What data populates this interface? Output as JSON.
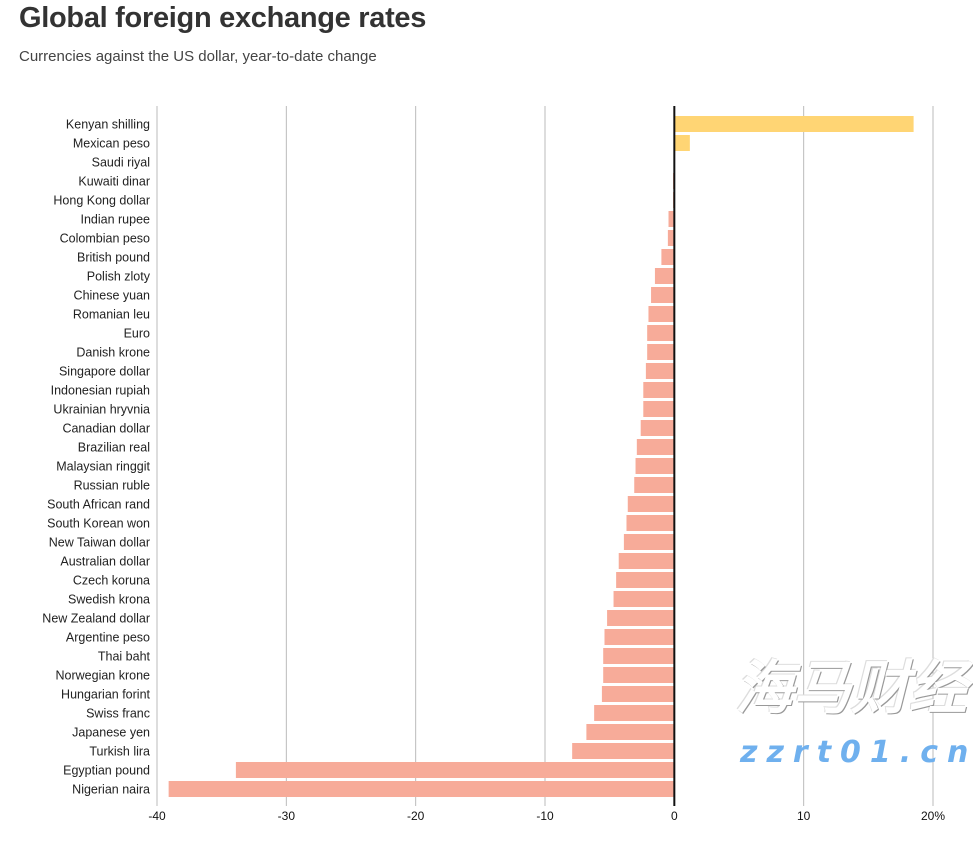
{
  "chart_data": {
    "type": "bar",
    "orientation": "horizontal",
    "title": "Global foreign exchange rates",
    "subtitle": "Currencies against the US dollar, year-to-date change",
    "categories": [
      "Kenyan shilling",
      "Mexican peso",
      "Saudi riyal",
      "Kuwaiti dinar",
      "Hong Kong dollar",
      "Indian rupee",
      "Colombian peso",
      "British pound",
      "Polish zloty",
      "Chinese yuan",
      "Romanian leu",
      "Euro",
      "Danish krone",
      "Singapore dollar",
      "Indonesian rupiah",
      "Ukrainian hryvnia",
      "Canadian dollar",
      "Brazilian real",
      "Malaysian ringgit",
      "Russian ruble",
      "South African rand",
      "South Korean won",
      "New Taiwan dollar",
      "Australian dollar",
      "Czech koruna",
      "Swedish krona",
      "New Zealand dollar",
      "Argentine peso",
      "Thai baht",
      "Norwegian krone",
      "Hungarian forint",
      "Swiss franc",
      "Japanese yen",
      "Turkish lira",
      "Egyptian pound",
      "Nigerian naira"
    ],
    "values": [
      18.5,
      1.2,
      0,
      -0.1,
      -0.1,
      -0.45,
      -0.5,
      -1.0,
      -1.5,
      -1.8,
      -2.0,
      -2.1,
      -2.1,
      -2.2,
      -2.4,
      -2.4,
      -2.6,
      -2.9,
      -3.0,
      -3.1,
      -3.6,
      -3.7,
      -3.9,
      -4.3,
      -4.5,
      -4.7,
      -5.2,
      -5.4,
      -5.5,
      -5.5,
      -5.6,
      -6.2,
      -6.8,
      -7.9,
      -33.9,
      -39.1
    ],
    "xlim": [
      -40,
      20
    ],
    "xticks": [
      -40,
      -30,
      -20,
      -10,
      0,
      10,
      20
    ],
    "xtick_labels": [
      "-40",
      "-30",
      "-20",
      "-10",
      "0",
      "10",
      "20%"
    ],
    "grid": true,
    "colors": {
      "positive": "#ffd574",
      "negative": "#f7ab99",
      "grid": "#bbbbbb",
      "zero": "#111111"
    }
  },
  "watermark": {
    "line1": "海马财经",
    "line2": "zzrt01.cn"
  }
}
